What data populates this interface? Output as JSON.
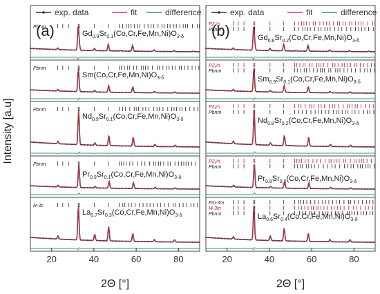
{
  "figure": {
    "ylabel": "Intensity [a.u]",
    "legend": [
      {
        "label": "exp. data",
        "color": "#333333"
      },
      {
        "label": "fit",
        "color": "#e0304a"
      },
      {
        "label": "difference",
        "color": "#2a9c6a"
      }
    ]
  },
  "chart_data": [
    {
      "type": "line",
      "panel_label": "(a)",
      "xlabel": "2Θ [°]",
      "xlim": [
        10,
        90
      ],
      "x_ticks": [
        20,
        40,
        60,
        80
      ],
      "colors": {
        "exp": "#333333",
        "fit": "#e0304a",
        "diff": "#2a9c6a",
        "tick_black": "#222222",
        "tick_red": "#c8102e"
      },
      "rows": [
        {
          "formula": {
            "base": "Gd",
            "s1": "0.9",
            "mid": "Sr",
            "s2": "0.1",
            "rest": "(Co,Cr,Fe,Mn,Ni)O",
            "s3": "3-δ"
          },
          "phases": [
            {
              "name": "Pbnm",
              "color": "black"
            }
          ],
          "series": [
            {
              "name": "exp. data",
              "x": [
                10,
                22.9,
                25.4,
                32.6,
                33.1,
                40.3,
                46.8,
                52.6,
                58.3,
                68.5,
                77.9,
                87.0,
                90
              ],
              "y": [
                0.16,
                0.2,
                0.13,
                1.0,
                0.3,
                0.18,
                0.34,
                0.1,
                0.3,
                0.12,
                0.1,
                0.08,
                0.07
              ]
            },
            {
              "name": "fit",
              "x": [
                10,
                22.9,
                25.4,
                32.6,
                33.1,
                40.3,
                46.8,
                52.6,
                58.3,
                68.5,
                77.9,
                87.0,
                90
              ],
              "y": [
                0.16,
                0.2,
                0.13,
                1.0,
                0.3,
                0.18,
                0.34,
                0.1,
                0.3,
                0.12,
                0.1,
                0.08,
                0.07
              ]
            }
          ]
        },
        {
          "formula": {
            "base": "Sm",
            "s1": "",
            "mid": "",
            "s2": "",
            "rest": "(Co,Cr,Fe,Mn,Ni)O",
            "s3": "3-δ"
          },
          "phases": [
            {
              "name": "Pbnm",
              "color": "black"
            }
          ],
          "series": [
            {
              "name": "exp. data",
              "x": [
                10,
                23.0,
                32.7,
                40.4,
                47.0,
                58.4,
                68.7,
                78.2,
                90
              ],
              "y": [
                0.18,
                0.2,
                1.0,
                0.16,
                0.34,
                0.3,
                0.12,
                0.1,
                0.07
              ]
            },
            {
              "name": "fit",
              "x": [
                10,
                23.0,
                32.7,
                40.4,
                47.0,
                58.4,
                68.7,
                78.2,
                90
              ],
              "y": [
                0.18,
                0.2,
                1.0,
                0.16,
                0.34,
                0.3,
                0.12,
                0.1,
                0.07
              ]
            }
          ]
        },
        {
          "formula": {
            "base": "Nd",
            "s1": "0.9",
            "mid": "Sr",
            "s2": "0.1",
            "rest": "(Co,Cr,Fe,Mn,Ni)O",
            "s3": "3-δ"
          },
          "phases": [
            {
              "name": "Pbnm",
              "color": "black"
            }
          ],
          "series": [
            {
              "name": "exp. data",
              "x": [
                10,
                23.0,
                32.8,
                40.5,
                47.1,
                58.6,
                68.9,
                78.4,
                90
              ],
              "y": [
                0.18,
                0.2,
                1.0,
                0.16,
                0.34,
                0.3,
                0.12,
                0.1,
                0.07
              ]
            },
            {
              "name": "fit",
              "x": [
                10,
                23.0,
                32.8,
                40.5,
                47.1,
                58.6,
                68.9,
                78.4,
                90
              ],
              "y": [
                0.18,
                0.2,
                1.0,
                0.16,
                0.34,
                0.3,
                0.12,
                0.1,
                0.07
              ]
            }
          ]
        },
        {
          "formula": {
            "base": "Pr",
            "s1": "0.9",
            "mid": "Sr",
            "s2": "0.1",
            "rest": "(Co,Cr,Fe,Mn,Ni)O",
            "s3": "3-δ"
          },
          "phases": [
            {
              "name": "Pbnm",
              "color": "black"
            }
          ],
          "series": [
            {
              "name": "exp. data",
              "x": [
                10,
                23.1,
                32.9,
                40.6,
                47.2,
                58.7,
                69.0,
                78.5,
                90
              ],
              "y": [
                0.16,
                0.2,
                1.0,
                0.16,
                0.34,
                0.3,
                0.12,
                0.1,
                0.07
              ]
            },
            {
              "name": "fit",
              "x": [
                10,
                23.1,
                32.9,
                40.6,
                47.2,
                58.7,
                69.0,
                78.5,
                90
              ],
              "y": [
                0.16,
                0.2,
                1.0,
                0.16,
                0.34,
                0.3,
                0.12,
                0.1,
                0.07
              ]
            }
          ]
        },
        {
          "formula": {
            "base": "La",
            "s1": "0.7",
            "mid": "Sr",
            "s2": "0.3",
            "rest": "(Co,Cr,Fe,Mn,Ni)O",
            "s3": "3-δ"
          },
          "phases": [
            {
              "name": "R-3c",
              "color": "black"
            }
          ],
          "series": [
            {
              "name": "exp. data",
              "x": [
                10,
                23.0,
                32.7,
                40.4,
                47.0,
                58.4,
                68.6,
                78.1,
                90
              ],
              "y": [
                0.1,
                0.22,
                1.0,
                0.26,
                0.46,
                0.28,
                0.12,
                0.12,
                0.08
              ]
            },
            {
              "name": "fit",
              "x": [
                10,
                23.0,
                32.7,
                40.4,
                47.0,
                58.4,
                68.6,
                78.1,
                90
              ],
              "y": [
                0.1,
                0.22,
                1.0,
                0.26,
                0.46,
                0.28,
                0.12,
                0.12,
                0.08
              ]
            }
          ]
        }
      ]
    },
    {
      "type": "line",
      "panel_label": "(b)",
      "xlabel": "2Θ [°]",
      "xlim": [
        10,
        90
      ],
      "x_ticks": [
        20,
        40,
        60,
        80
      ],
      "colors": {
        "exp": "#333333",
        "fit": "#e0304a",
        "diff": "#2a9c6a",
        "tick_black": "#222222",
        "tick_red": "#c8102e"
      },
      "rows": [
        {
          "formula": {
            "base": "Gd",
            "s1": "0.8",
            "mid": "Sr",
            "s2": "0.2",
            "rest": "(Co,Cr,Fe,Mn,Ni)O",
            "s3": "3-δ"
          },
          "phases": [
            {
              "name": "P2₁/n",
              "color": "red"
            },
            {
              "name": "Pbnm",
              "color": "black"
            }
          ],
          "series": [
            {
              "name": "exp. data",
              "x": [
                10,
                22.9,
                25.4,
                32.6,
                33.1,
                40.3,
                46.8,
                52.6,
                58.3,
                68.5,
                77.9,
                87.0,
                90
              ],
              "y": [
                0.16,
                0.2,
                0.13,
                1.0,
                0.3,
                0.18,
                0.34,
                0.1,
                0.3,
                0.12,
                0.1,
                0.08,
                0.07
              ]
            },
            {
              "name": "fit",
              "x": [
                10,
                22.9,
                25.4,
                32.6,
                33.1,
                40.3,
                46.8,
                52.6,
                58.3,
                68.5,
                77.9,
                87.0,
                90
              ],
              "y": [
                0.16,
                0.2,
                0.13,
                1.0,
                0.3,
                0.18,
                0.34,
                0.1,
                0.3,
                0.12,
                0.1,
                0.08,
                0.07
              ]
            }
          ]
        },
        {
          "formula": {
            "base": "Sm",
            "s1": "0.9",
            "mid": "Sr",
            "s2": "0.1",
            "rest": "(Co,Cr,Fe,Mn,Ni)O",
            "s3": "3-δ"
          },
          "phases": [
            {
              "name": "P2₁/n",
              "color": "red"
            },
            {
              "name": "Pbnm",
              "color": "black"
            }
          ],
          "series": [
            {
              "name": "exp. data",
              "x": [
                10,
                23.0,
                32.7,
                40.4,
                47.0,
                58.4,
                68.7,
                78.2,
                90
              ],
              "y": [
                0.18,
                0.2,
                1.0,
                0.16,
                0.34,
                0.3,
                0.12,
                0.1,
                0.07
              ]
            },
            {
              "name": "fit",
              "x": [
                10,
                23.0,
                32.7,
                40.4,
                47.0,
                58.4,
                68.7,
                78.2,
                90
              ],
              "y": [
                0.18,
                0.2,
                1.0,
                0.16,
                0.34,
                0.3,
                0.12,
                0.1,
                0.07
              ]
            }
          ]
        },
        {
          "formula": {
            "base": "Nd",
            "s1": "0.8",
            "mid": "Sr",
            "s2": "0.2",
            "rest": "(Co,Cr,Fe,Mn,Ni)O",
            "s3": "3-δ"
          },
          "phases": [
            {
              "name": "P2₁/n",
              "color": "red"
            },
            {
              "name": "Pbnm",
              "color": "black"
            }
          ],
          "series": [
            {
              "name": "exp. data",
              "x": [
                10,
                23.0,
                32.8,
                40.5,
                47.1,
                58.6,
                68.9,
                78.4,
                90
              ],
              "y": [
                0.18,
                0.2,
                1.0,
                0.16,
                0.34,
                0.3,
                0.12,
                0.1,
                0.07
              ]
            },
            {
              "name": "fit",
              "x": [
                10,
                23.0,
                32.8,
                40.5,
                47.1,
                58.6,
                68.9,
                78.4,
                90
              ],
              "y": [
                0.18,
                0.2,
                1.0,
                0.16,
                0.34,
                0.3,
                0.12,
                0.1,
                0.07
              ]
            }
          ]
        },
        {
          "formula": {
            "base": "Pr",
            "s1": "0.8",
            "mid": "Sr",
            "s2": "0.2",
            "rest": "(Co,Cr,Fe,Mn,Ni)O",
            "s3": "3-δ"
          },
          "phases": [
            {
              "name": "P2₁/n",
              "color": "red"
            },
            {
              "name": "Pbnm",
              "color": "black"
            }
          ],
          "series": [
            {
              "name": "exp. data",
              "x": [
                10,
                23.1,
                32.9,
                40.6,
                47.2,
                58.7,
                69.0,
                78.5,
                90
              ],
              "y": [
                0.16,
                0.2,
                1.0,
                0.16,
                0.34,
                0.3,
                0.12,
                0.1,
                0.07
              ]
            },
            {
              "name": "fit",
              "x": [
                10,
                23.1,
                32.9,
                40.6,
                47.2,
                58.7,
                69.0,
                78.5,
                90
              ],
              "y": [
                0.16,
                0.2,
                1.0,
                0.16,
                0.34,
                0.3,
                0.12,
                0.1,
                0.07
              ]
            }
          ]
        },
        {
          "formula": {
            "base": "La",
            "s1": "0.6",
            "mid": "Sr",
            "s2": "0.4",
            "rest": "(Co,Cr,Fe,Mn,Ni)O",
            "s3": "3-δ"
          },
          "phases": [
            {
              "name": "Fm-3m",
              "color": "black"
            },
            {
              "name": "I4-3m",
              "color": "red"
            },
            {
              "name": "Pbnm",
              "color": "black"
            }
          ],
          "series": [
            {
              "name": "exp. data",
              "x": [
                10,
                23.0,
                32.7,
                40.4,
                47.0,
                58.4,
                68.6,
                78.1,
                90
              ],
              "y": [
                0.1,
                0.2,
                1.0,
                0.22,
                0.42,
                0.28,
                0.12,
                0.12,
                0.08
              ]
            },
            {
              "name": "fit",
              "x": [
                10,
                23.0,
                32.7,
                40.4,
                47.0,
                58.4,
                68.6,
                78.1,
                90
              ],
              "y": [
                0.1,
                0.2,
                1.0,
                0.22,
                0.42,
                0.28,
                0.12,
                0.12,
                0.08
              ]
            }
          ]
        }
      ]
    }
  ]
}
